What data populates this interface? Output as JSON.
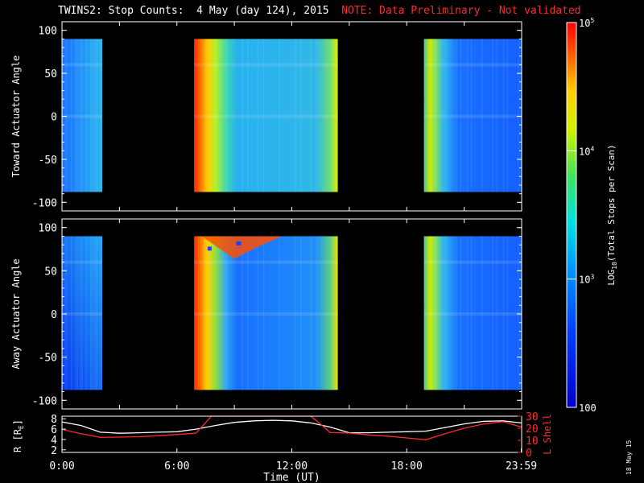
{
  "title": {
    "main": "TWINS2: Stop Counts:  4 May (day 124), 2015",
    "note": "NOTE: Data Preliminary - Not validated"
  },
  "date_stamp": "18 May 15",
  "colors": {
    "background": "#000000",
    "axis": "#ffffff",
    "note_red": "#ff2a2a",
    "l_shell_line": "#ff2a2a",
    "r_line": "#ffffff"
  },
  "chart_data": [
    {
      "type": "heatmap",
      "id": "toward",
      "ylabel": "Toward Actuator Angle",
      "ylim": [
        -110,
        110
      ],
      "yticks": [
        100,
        50,
        0,
        -50,
        -100
      ],
      "xlim": [
        0,
        24
      ],
      "angle_range": [
        -88,
        90
      ],
      "data_intervals_hours": [
        [
          0.0,
          2.1
        ],
        [
          6.9,
          14.4
        ],
        [
          18.9,
          24.0
        ]
      ],
      "structure": [
        {
          "t0": 0.0,
          "t1": 2.1,
          "level": 0.3,
          "note": "blue with cyan band near 60 and bright toward low angles"
        },
        {
          "t0": 6.9,
          "t1": 7.3,
          "level": 0.95,
          "note": "red/orange edge"
        },
        {
          "t0": 7.3,
          "t1": 8.2,
          "level": 0.7,
          "note": "yellow to green"
        },
        {
          "t0": 8.2,
          "t1": 14.4,
          "level": 0.42,
          "note": "cyan-blue with yellow at end"
        },
        {
          "t0": 18.9,
          "t1": 20.0,
          "level": 0.6,
          "note": "green to cyan stripes"
        },
        {
          "t0": 20.0,
          "t1": 24.0,
          "level": 0.28,
          "note": "blue"
        }
      ]
    },
    {
      "type": "heatmap",
      "id": "away",
      "ylabel": "Away Actuator Angle",
      "ylim": [
        -110,
        110
      ],
      "yticks": [
        100,
        50,
        0,
        -50,
        -100
      ],
      "xlim": [
        0,
        24
      ],
      "angle_range": [
        -88,
        90
      ],
      "data_intervals_hours": [
        [
          0.0,
          2.1
        ],
        [
          6.9,
          14.4
        ],
        [
          18.9,
          24.0
        ]
      ],
      "structure": [
        {
          "t0": 0.0,
          "t1": 2.1,
          "level": 0.25,
          "note": "blue, brighter at top-right"
        },
        {
          "t0": 6.9,
          "t1": 7.3,
          "level": 0.95,
          "note": "red/orange edge"
        },
        {
          "t0": 7.3,
          "t1": 8.2,
          "level": 0.65,
          "note": "yellow to green"
        },
        {
          "t0": 8.2,
          "t1": 14.4,
          "level": 0.35,
          "note": "blue-cyan, red band near top 70-90"
        },
        {
          "t0": 18.9,
          "t1": 20.0,
          "level": 0.5,
          "note": "green to cyan"
        },
        {
          "t0": 20.0,
          "t1": 24.0,
          "level": 0.22,
          "note": "blue"
        }
      ]
    },
    {
      "type": "line",
      "id": "orbit",
      "xlabel": "Time (UT)",
      "xticks": [
        "0:00",
        "6:00",
        "12:00",
        "18:00",
        "23:59"
      ],
      "xtick_hours": [
        0,
        6,
        12,
        18,
        23.98
      ],
      "y_left": {
        "label": "R [R",
        "label_sub": "E",
        "label_end": "]",
        "ticks": [
          8,
          6,
          4,
          2
        ],
        "ylim": [
          1.5,
          8.5
        ]
      },
      "y_right": {
        "label": "L Shell",
        "ticks": [
          30,
          20,
          10,
          0
        ],
        "ylim": [
          0,
          30
        ]
      },
      "series": [
        {
          "label_side": "left",
          "x": [
            0,
            1,
            2,
            3,
            4,
            5,
            6,
            7,
            8,
            9,
            10,
            11,
            12,
            13,
            14,
            15,
            16,
            17,
            18,
            19,
            20,
            21,
            22,
            23,
            24
          ],
          "y": [
            7.4,
            6.7,
            5.4,
            5.2,
            5.3,
            5.4,
            5.5,
            6.0,
            6.7,
            7.3,
            7.6,
            7.7,
            7.6,
            7.2,
            6.4,
            5.3,
            5.3,
            5.4,
            5.5,
            5.6,
            6.3,
            7.0,
            7.5,
            7.6,
            7.2
          ]
        },
        {
          "label_side": "right",
          "x": [
            0,
            1,
            2,
            3,
            4,
            5,
            6,
            7,
            7.8,
            13.0,
            13.6,
            14.0,
            15,
            16,
            17,
            18,
            19,
            20,
            21,
            22,
            23,
            24
          ],
          "y": [
            19.0,
            15.5,
            12.5,
            12.7,
            13.0,
            13.8,
            14.8,
            16.0,
            30.0,
            30.0,
            22.0,
            16.5,
            16.0,
            14.5,
            13.5,
            12.0,
            10.5,
            15.5,
            20.0,
            23.5,
            25.5,
            21.0
          ]
        }
      ]
    }
  ],
  "colorbar": {
    "label": "LOG",
    "label_sub": "10",
    "label_rest": "(Total Stops per Scan)",
    "ticks": [
      {
        "text": "10",
        "sup": "5",
        "frac": 1.0
      },
      {
        "text": "10",
        "sup": "4",
        "frac": 0.6667
      },
      {
        "text": "10",
        "sup": "3",
        "frac": 0.3333
      },
      {
        "text": "100",
        "sup": "",
        "frac": 0.0
      }
    ]
  }
}
